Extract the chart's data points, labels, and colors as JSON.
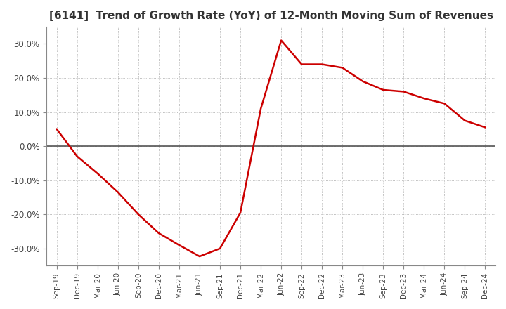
{
  "title": "[6141]  Trend of Growth Rate (YoY) of 12-Month Moving Sum of Revenues",
  "title_fontsize": 11,
  "background_color": "#ffffff",
  "line_color": "#cc0000",
  "grid_color": "#aaaaaa",
  "zero_line_color": "#555555",
  "ylim": [
    -0.35,
    0.35
  ],
  "yticks": [
    -0.3,
    -0.2,
    -0.1,
    0.0,
    0.1,
    0.2,
    0.3
  ],
  "xlabels": [
    "Sep-19",
    "Dec-19",
    "Mar-20",
    "Jun-20",
    "Sep-20",
    "Dec-20",
    "Mar-21",
    "Jun-21",
    "Sep-21",
    "Dec-21",
    "Mar-22",
    "Jun-22",
    "Sep-22",
    "Dec-22",
    "Mar-23",
    "Jun-23",
    "Sep-23",
    "Dec-23",
    "Mar-24",
    "Jun-24",
    "Sep-24",
    "Dec-24"
  ],
  "values": [
    0.05,
    -0.03,
    -0.08,
    -0.135,
    -0.2,
    -0.255,
    -0.29,
    -0.323,
    -0.3,
    -0.195,
    0.11,
    0.31,
    0.24,
    0.24,
    0.23,
    0.19,
    0.165,
    0.16,
    0.14,
    0.125,
    0.075,
    0.055
  ]
}
